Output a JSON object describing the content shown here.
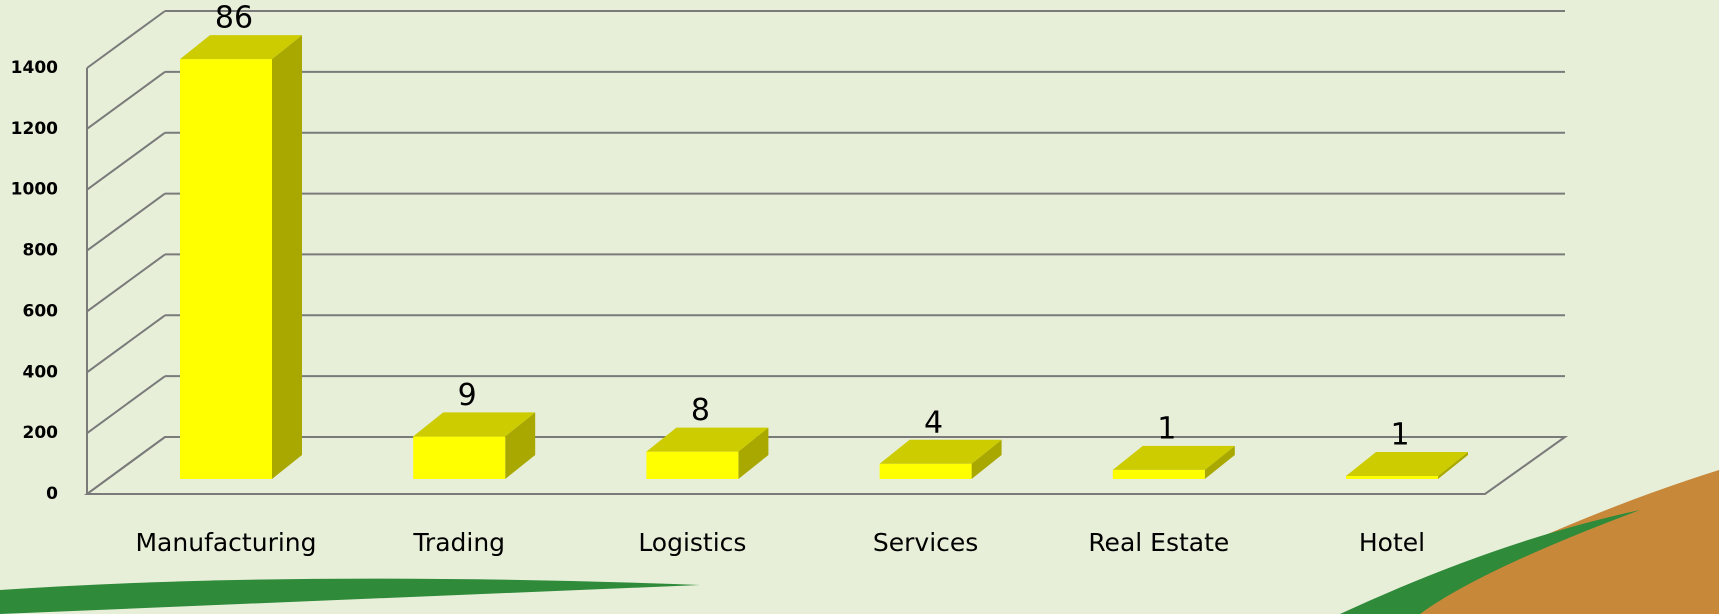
{
  "chart_data": {
    "type": "bar3d",
    "categories": [
      "Manufacturing",
      "Trading",
      "Logistics",
      "Services",
      "Real Estate",
      "Hotel"
    ],
    "values": [
      1380,
      140,
      90,
      50,
      30,
      10
    ],
    "data_labels": [
      "86",
      "9",
      "8",
      "4",
      "1",
      "1"
    ],
    "color": "#ffff00",
    "side_color": "#a8a800",
    "top_color": "#cccc00",
    "ylim": [
      0,
      1400
    ],
    "yticks": [
      0,
      200,
      400,
      600,
      800,
      1000,
      1200,
      1400
    ],
    "grid": true
  }
}
